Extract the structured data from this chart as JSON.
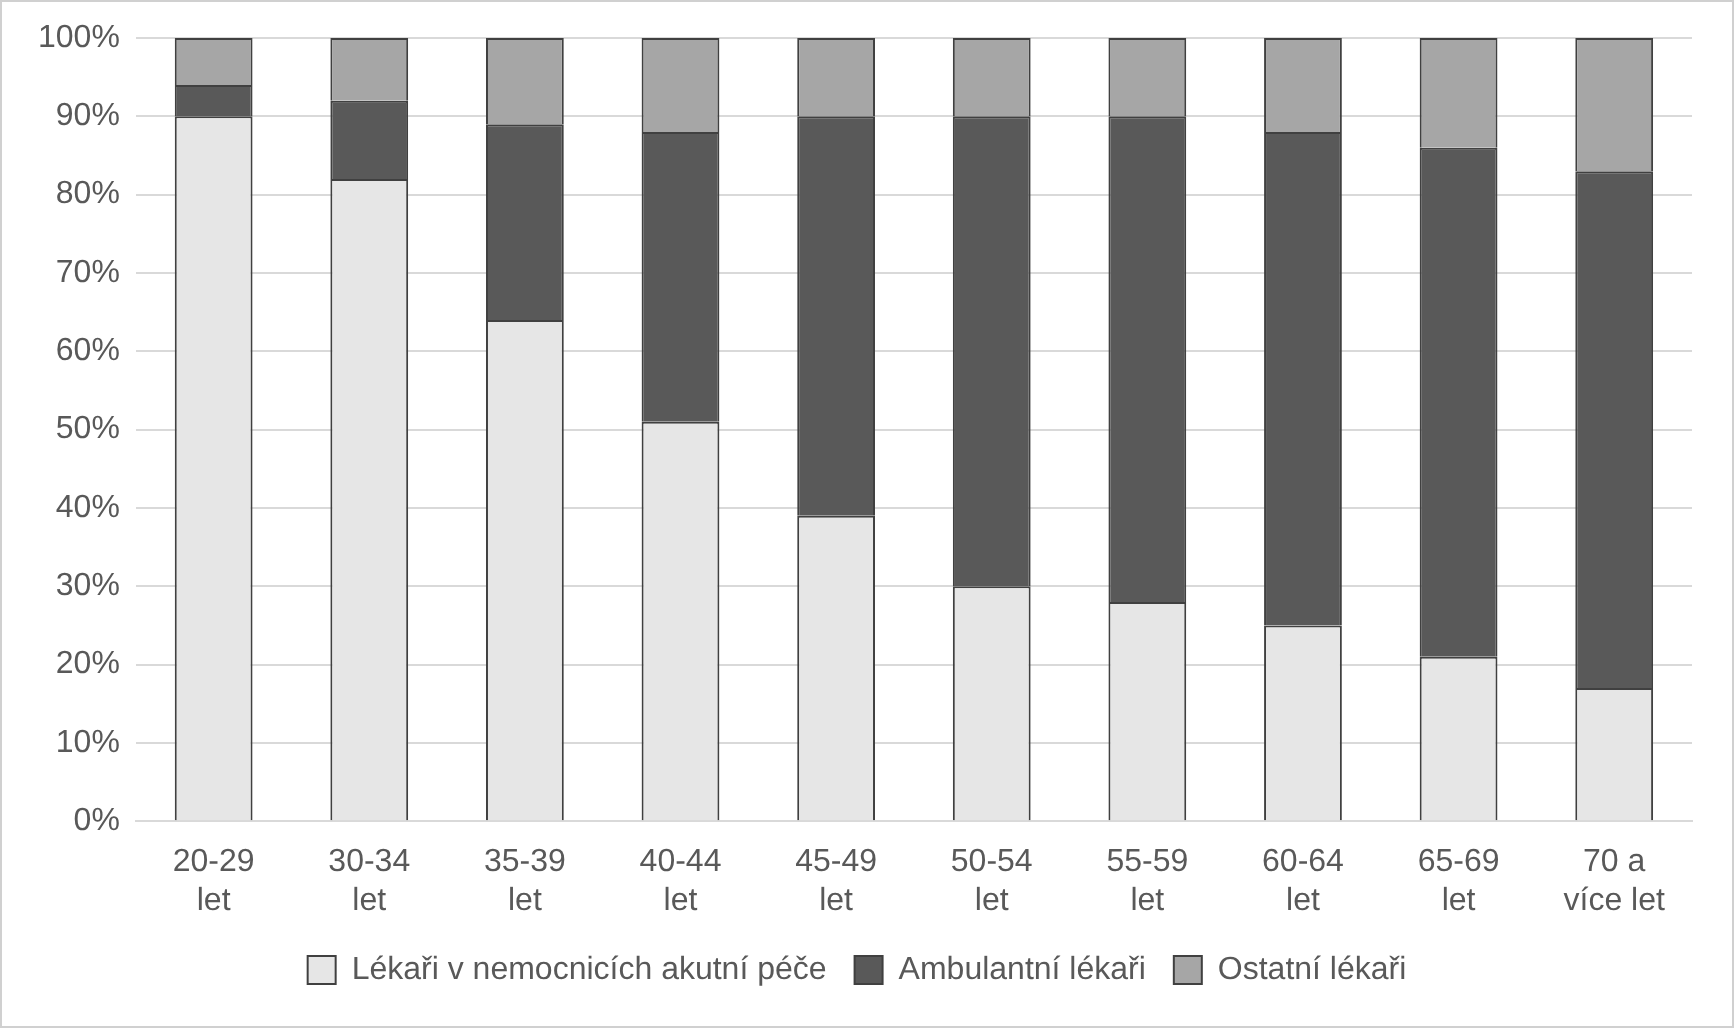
{
  "chart_data": {
    "type": "bar",
    "stacked": true,
    "categories": [
      "20-29 let",
      "30-34 let",
      "35-39 let",
      "40-44 let",
      "45-49 let",
      "50-54 let",
      "55-59 let",
      "60-64 let",
      "65-69 let",
      "70 a více let"
    ],
    "series": [
      {
        "name": "Lékaři v nemocnicích akutní péče",
        "color": "#e6e6e6",
        "values": [
          90,
          82,
          64,
          51,
          39,
          30,
          28,
          25,
          21,
          17
        ]
      },
      {
        "name": "Ambulantní lékaři",
        "color": "#595959",
        "values": [
          4,
          10,
          25,
          37,
          51,
          60,
          62,
          63,
          65,
          66
        ]
      },
      {
        "name": "Ostatní lékaři",
        "color": "#a6a6a6",
        "values": [
          6,
          8,
          11,
          12,
          10,
          10,
          10,
          12,
          14,
          17
        ]
      }
    ],
    "ylim": [
      0,
      100
    ],
    "yticks": [
      {
        "value": 0,
        "label": "0%"
      },
      {
        "value": 10,
        "label": "10%"
      },
      {
        "value": 20,
        "label": "20%"
      },
      {
        "value": 30,
        "label": "30%"
      },
      {
        "value": 40,
        "label": "40%"
      },
      {
        "value": 50,
        "label": "50%"
      },
      {
        "value": 60,
        "label": "60%"
      },
      {
        "value": 70,
        "label": "70%"
      },
      {
        "value": 80,
        "label": "80%"
      },
      {
        "value": 90,
        "label": "90%"
      },
      {
        "value": 100,
        "label": "100%"
      }
    ],
    "grid": "y",
    "legend": "bottom"
  }
}
